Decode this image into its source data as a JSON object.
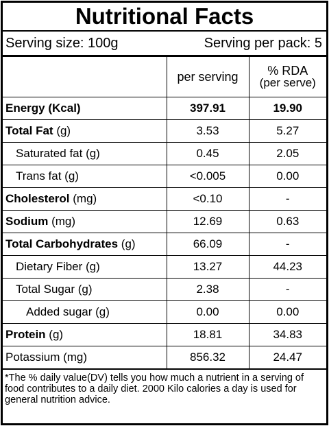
{
  "header": {
    "title": "Nutritional Facts",
    "serving_size": "Serving size: 100g",
    "serving_per_pack": "Serving per pack: 5"
  },
  "table": {
    "columns": [
      "per serving",
      "% RDA",
      "(per serve)"
    ],
    "rows": [
      {
        "name": "Energy (Kcal)",
        "per_serving": "397.91",
        "rda": "19.90"
      },
      {
        "name": "Total Fat",
        "unit": "(g)",
        "per_serving": "3.53",
        "rda": "5.27"
      },
      {
        "name": "Saturated fat (g)",
        "per_serving": "0.45",
        "rda": "2.05"
      },
      {
        "name": "Trans fat (g)",
        "per_serving": "<0.005",
        "rda": "0.00"
      },
      {
        "name": "Cholesterol",
        "unit": "(mg)",
        "per_serving": "<0.10",
        "rda": "-"
      },
      {
        "name": "Sodium",
        "unit": "(mg)",
        "per_serving": "12.69",
        "rda": "0.63"
      },
      {
        "name": "Total Carbohydrates",
        "unit": "(g)",
        "per_serving": "66.09",
        "rda": "-"
      },
      {
        "name": "Dietary Fiber (g)",
        "per_serving": "13.27",
        "rda": "44.23"
      },
      {
        "name": "Total Sugar (g)",
        "per_serving": "2.38",
        "rda": "-"
      },
      {
        "name": "Added sugar (g)",
        "per_serving": "0.00",
        "rda": "0.00"
      },
      {
        "name": "Protein",
        "unit": "(g)",
        "per_serving": "18.81",
        "rda": "34.83"
      },
      {
        "name": "Potassium (mg)",
        "per_serving": "856.32",
        "rda": "24.47"
      }
    ]
  },
  "footnote": "*The % daily value(DV) tells you how much a nutrient in a serving of food contributes to a daily diet. 2000 Kilo calories a day is used for general nutrition advice."
}
